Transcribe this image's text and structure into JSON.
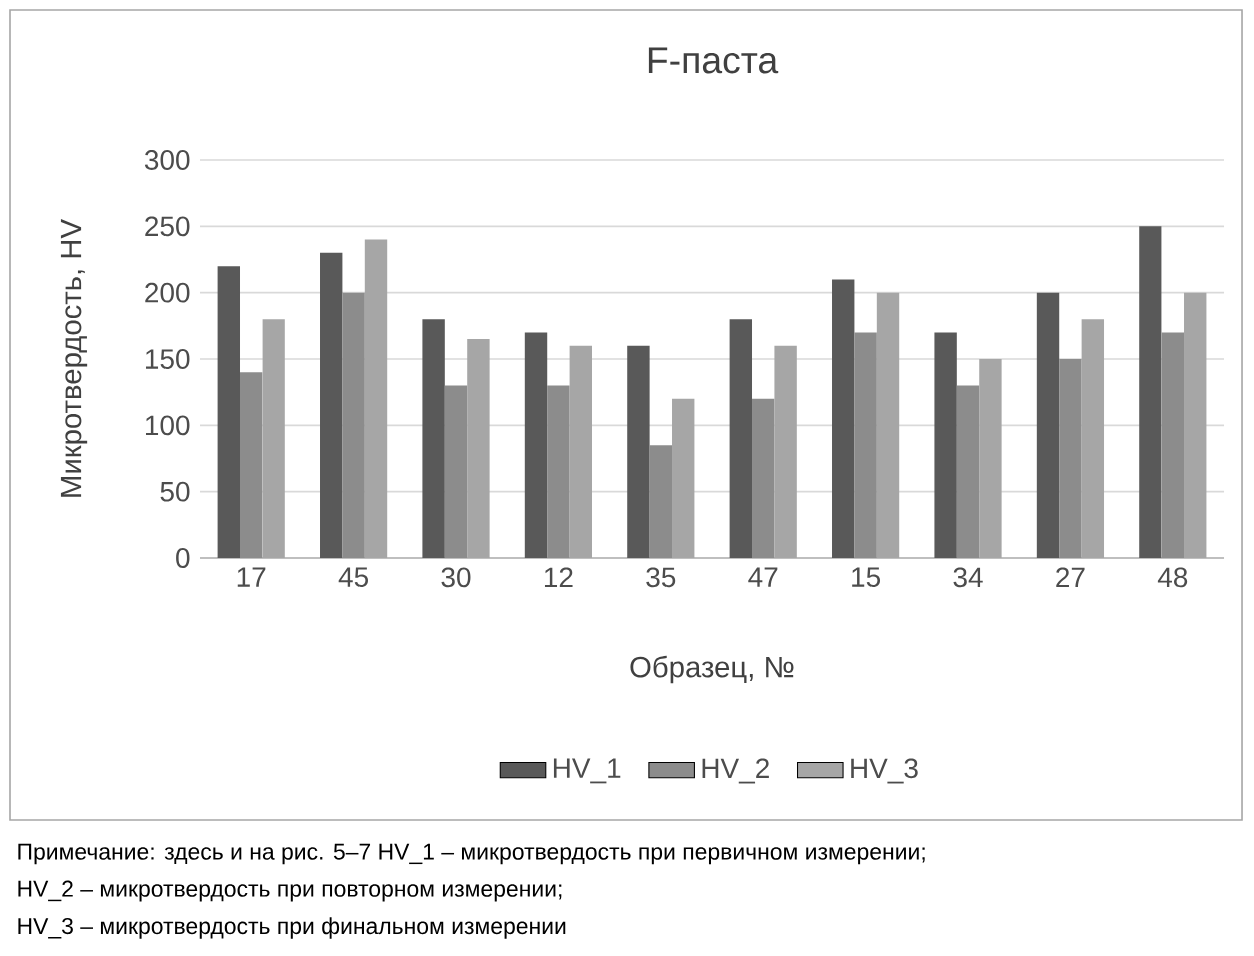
{
  "chart_data": {
    "type": "bar",
    "title": "F-паста",
    "xlabel": "Образец, №",
    "ylabel": "Микротвердость, HV",
    "categories": [
      "17",
      "45",
      "30",
      "12",
      "35",
      "47",
      "15",
      "34",
      "27",
      "48"
    ],
    "series": [
      {
        "name": "HV_1",
        "color": "#595959",
        "values": [
          220,
          230,
          180,
          170,
          160,
          180,
          210,
          170,
          200,
          250
        ]
      },
      {
        "name": "HV_2",
        "color": "#8c8c8c",
        "values": [
          140,
          200,
          130,
          130,
          85,
          120,
          170,
          130,
          150,
          170
        ]
      },
      {
        "name": "HV_3",
        "color": "#a6a6a6",
        "values": [
          180,
          240,
          165,
          160,
          120,
          160,
          200,
          150,
          180,
          200
        ]
      }
    ],
    "ylim": [
      0,
      300
    ],
    "yticks": [
      0,
      50,
      100,
      150,
      200,
      250,
      300
    ],
    "grid": "y",
    "legend": "bottom",
    "annotations": [
      "Примечание: здесь и на рис. 5–7 HV_1 – микротвердость при первичном измерении;",
      "HV_2 – микротвердость при повторном измерении;",
      "HV_3 – микротвердость при финальном измерении"
    ]
  }
}
